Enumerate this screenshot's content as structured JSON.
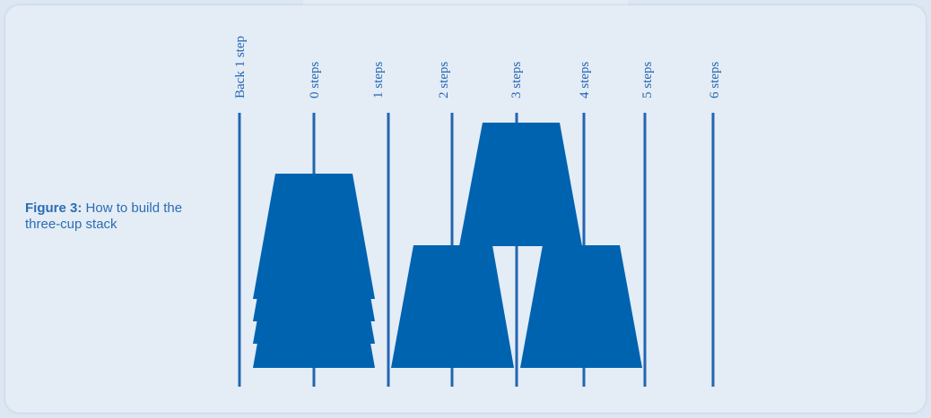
{
  "figure": {
    "label": "Figure 3:",
    "caption": "How to build the three-cup stack"
  },
  "steps": [
    "Back 1 step",
    "0 steps",
    "1 steps",
    "2 steps",
    "3 steps",
    "4 steps",
    "5 steps",
    "6 steps"
  ],
  "colors": {
    "background": "#dde7f3",
    "card": "#e4ecf6",
    "cup": "#0063b0",
    "line": "#2366b0",
    "text": "#2a6db3"
  },
  "diagram": {
    "left_stack_cups": 4,
    "pyramid": {
      "bottom_row": 2,
      "top_row": 1
    }
  }
}
